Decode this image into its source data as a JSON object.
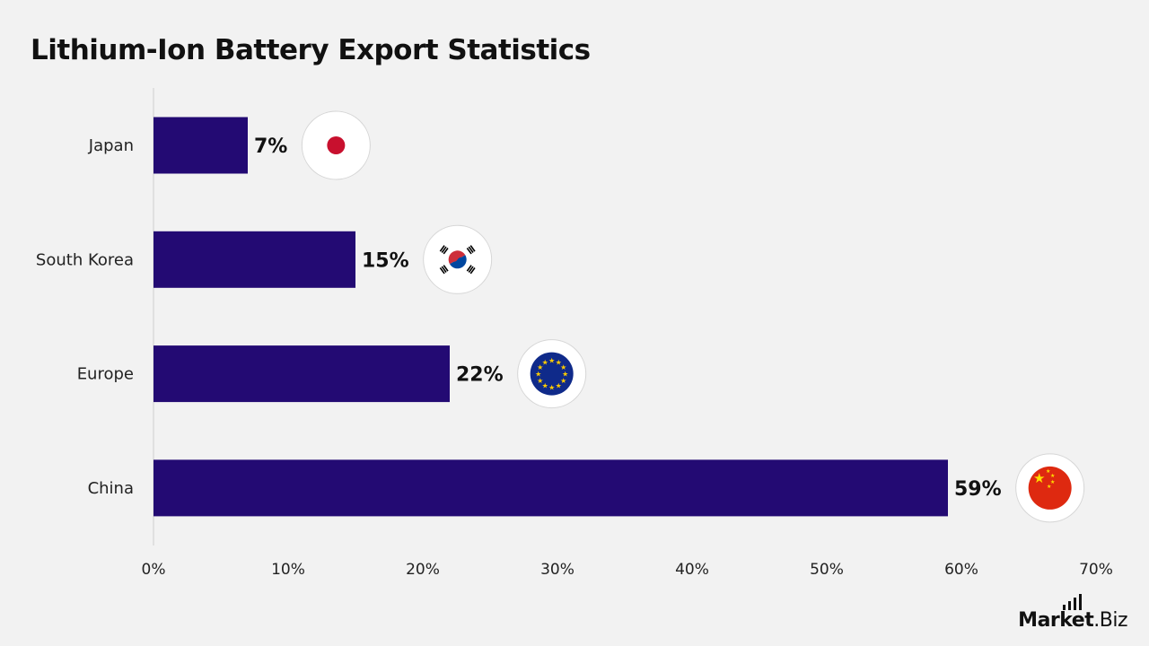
{
  "title": "Lithium-Ion Battery Export Statistics",
  "brand": {
    "part1": "Market",
    "part2": ".Biz"
  },
  "colors": {
    "bar": "#230a73",
    "background": "#f2f2f2",
    "axis": "#cfcfcf"
  },
  "chart_data": {
    "type": "bar",
    "orientation": "horizontal",
    "title": "Lithium-Ion Battery Export Statistics",
    "categories": [
      "Japan",
      "South Korea",
      "Europe",
      "China"
    ],
    "values": [
      7,
      15,
      22,
      59
    ],
    "value_labels": [
      "7%",
      "15%",
      "22%",
      "59%"
    ],
    "flags": [
      "japan-flag",
      "south-korea-flag",
      "eu-flag",
      "china-flag"
    ],
    "xlim": [
      0,
      70
    ],
    "xticks": [
      0,
      10,
      20,
      30,
      40,
      50,
      60,
      70
    ],
    "xtick_labels": [
      "0%",
      "10%",
      "20%",
      "30%",
      "40%",
      "50%",
      "60%",
      "70%"
    ],
    "xlabel": "",
    "ylabel": "",
    "grid": false,
    "legend": "none"
  }
}
